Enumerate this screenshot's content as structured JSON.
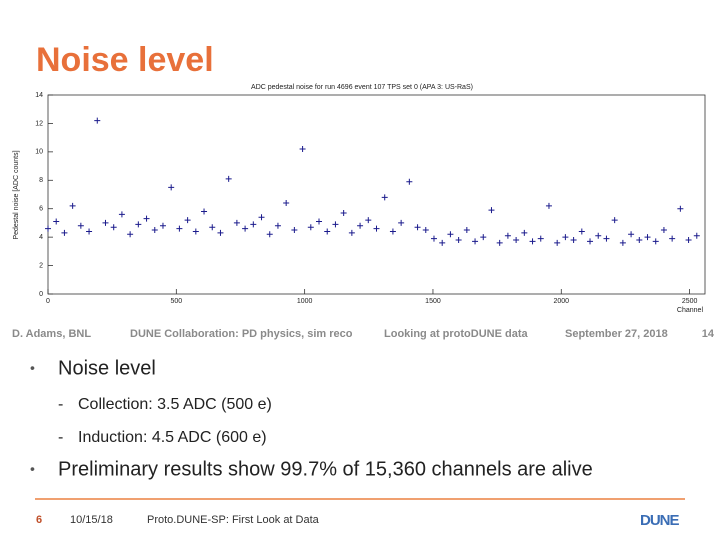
{
  "title": "Noise level",
  "chart_data": {
    "type": "scatter",
    "title": "ADC pedestal noise for run 4696 event 107 TPS set 0 (APA 3: US-RaS)",
    "x_label": "Channel",
    "y_label": "Pedestal noise [ADC counts]",
    "xlim": [
      0,
      2560
    ],
    "ylim": [
      0,
      14
    ],
    "xticks": [
      0,
      500,
      1000,
      1500,
      2000,
      2500
    ],
    "yticks": [
      0,
      2,
      4,
      6,
      8,
      10,
      12,
      14
    ],
    "color": "#1a1a8c",
    "x": [
      0,
      32,
      64,
      96,
      128,
      160,
      192,
      224,
      256,
      288,
      320,
      352,
      384,
      416,
      448,
      480,
      512,
      544,
      576,
      608,
      640,
      672,
      704,
      736,
      768,
      800,
      832,
      864,
      896,
      928,
      960,
      992,
      1024,
      1056,
      1088,
      1120,
      1152,
      1184,
      1216,
      1248,
      1280,
      1312,
      1344,
      1376,
      1408,
      1440,
      1472,
      1504,
      1536,
      1568,
      1600,
      1632,
      1664,
      1696,
      1728,
      1760,
      1792,
      1824,
      1856,
      1888,
      1920,
      1952,
      1984,
      2016,
      2048,
      2080,
      2112,
      2144,
      2176,
      2208,
      2240,
      2272,
      2304,
      2336,
      2368,
      2400,
      2432,
      2464,
      2496,
      2528
    ],
    "values": [
      4.6,
      5.1,
      4.3,
      6.2,
      4.8,
      4.4,
      12.2,
      5.0,
      4.7,
      5.6,
      4.2,
      4.9,
      5.3,
      4.5,
      4.8,
      7.5,
      4.6,
      5.2,
      4.4,
      5.8,
      4.7,
      4.3,
      8.1,
      5.0,
      4.6,
      4.9,
      5.4,
      4.2,
      4.8,
      6.4,
      4.5,
      10.2,
      4.7,
      5.1,
      4.4,
      4.9,
      5.7,
      4.3,
      4.8,
      5.2,
      4.6,
      6.8,
      4.4,
      5.0,
      7.9,
      4.7,
      4.5,
      3.9,
      3.6,
      4.2,
      3.8,
      4.5,
      3.7,
      4.0,
      5.9,
      3.6,
      4.1,
      3.8,
      4.3,
      3.7,
      3.9,
      6.2,
      3.6,
      4.0,
      3.8,
      4.4,
      3.7,
      4.1,
      3.9,
      5.2,
      3.6,
      4.2,
      3.8,
      4.0,
      3.7,
      4.5,
      3.9,
      6.0,
      3.8,
      4.1
    ]
  },
  "info_strip": {
    "author": "D. Adams, BNL",
    "collaboration": "DUNE Collaboration: PD physics, sim reco",
    "talk": "Looking at protoDUNE data",
    "date": "September 27, 2018",
    "page": "14"
  },
  "bullets": [
    {
      "text": "Noise level",
      "sub": [
        "Collection: 3.5 ADC (500 e)",
        "Induction: 4.5 ADC (600 e)"
      ]
    },
    {
      "text": "Preliminary results show 99.7% of 15,360 channels are alive"
    }
  ],
  "footer": {
    "page": "6",
    "date": "10/15/18",
    "title": "Proto.DUNE-SP: First Look at Data",
    "logo": "DUNE"
  }
}
